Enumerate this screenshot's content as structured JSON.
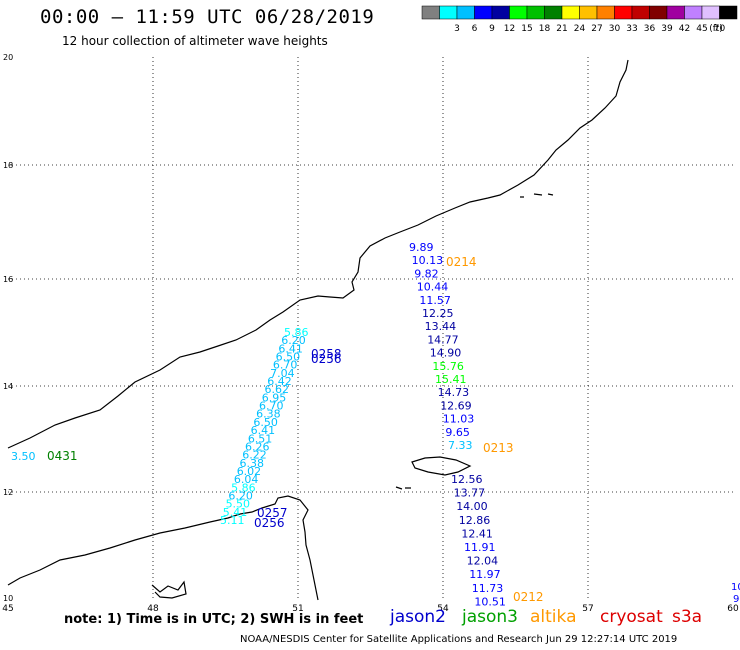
{
  "header": {
    "title": "00:00 – 11:59 UTC 06/28/2019",
    "subtitle": "12 hour collection of altimeter wave heights"
  },
  "legend": {
    "unit": "(ft)",
    "bins": [
      {
        "label": "",
        "color": "#808080"
      },
      {
        "label": "3",
        "color": "#00ffff"
      },
      {
        "label": "6",
        "color": "#00c0ff"
      },
      {
        "label": "9",
        "color": "#0000ff"
      },
      {
        "label": "12",
        "color": "#0000a0"
      },
      {
        "label": "15",
        "color": "#00ff00"
      },
      {
        "label": "18",
        "color": "#00c000"
      },
      {
        "label": "21",
        "color": "#008000"
      },
      {
        "label": "24",
        "color": "#ffff00"
      },
      {
        "label": "27",
        "color": "#ffc000"
      },
      {
        "label": "30",
        "color": "#ff8000"
      },
      {
        "label": "33",
        "color": "#ff0000"
      },
      {
        "label": "36",
        "color": "#c00000"
      },
      {
        "label": "39",
        "color": "#800000"
      },
      {
        "label": "42",
        "color": "#a000a0"
      },
      {
        "label": "45",
        "color": "#c080ff"
      },
      {
        "label": "70",
        "color": "#e0c0ff"
      },
      {
        "label": "",
        "color": "#000000"
      }
    ]
  },
  "axes": {
    "lon_ticks": [
      "45",
      "48",
      "51",
      "54",
      "57",
      "60"
    ],
    "lat_ticks": [
      "20",
      "18",
      "16",
      "14",
      "12",
      "10"
    ]
  },
  "tracks": {
    "jason3_east": {
      "time_label": "0214",
      "values": [
        "9.89",
        "10.13",
        "9.82",
        "10.44",
        "11.57",
        "12.25",
        "13.44",
        "14.77",
        "14.90",
        "15.76",
        "15.41",
        "14.73",
        "12.69",
        "11.03",
        "9.65",
        "7.33"
      ]
    },
    "jason3_east_time2": "0213",
    "jason3_south": {
      "time_label": "0212",
      "values": [
        "12.56",
        "13.77",
        "14.00",
        "12.86",
        "12.41",
        "11.91",
        "12.04",
        "11.97",
        "11.73",
        "10.51"
      ]
    },
    "jason2_west": {
      "time_labels": [
        "0258",
        "0256",
        "0257",
        "0256"
      ],
      "values": [
        "5.86",
        "6.20",
        "6.41",
        "6.50",
        "6.70",
        "7.04",
        "6.42",
        "6.62",
        "6.95",
        "6.70",
        "6.38",
        "6.50",
        "6.41",
        "6.51",
        "6.26",
        "6.22",
        "6.38",
        "6.02",
        "6.04",
        "5.86",
        "6.20",
        "5.50",
        "5.41",
        "5.11"
      ]
    },
    "west_edge": {
      "value": "3.50",
      "time_label": "0431"
    },
    "east_edge": {
      "values": [
        "10",
        "9"
      ]
    }
  },
  "footer": {
    "note": "note: 1) Time is in UTC; 2) SWH is in feet",
    "satellites": [
      "jason2",
      "jason3",
      "altika",
      "cryosat",
      "s3a"
    ],
    "credit": "NOAA/NESDIS Center for Satellite Applications and Research    Jun 29 12:27:14 UTC 2019"
  }
}
